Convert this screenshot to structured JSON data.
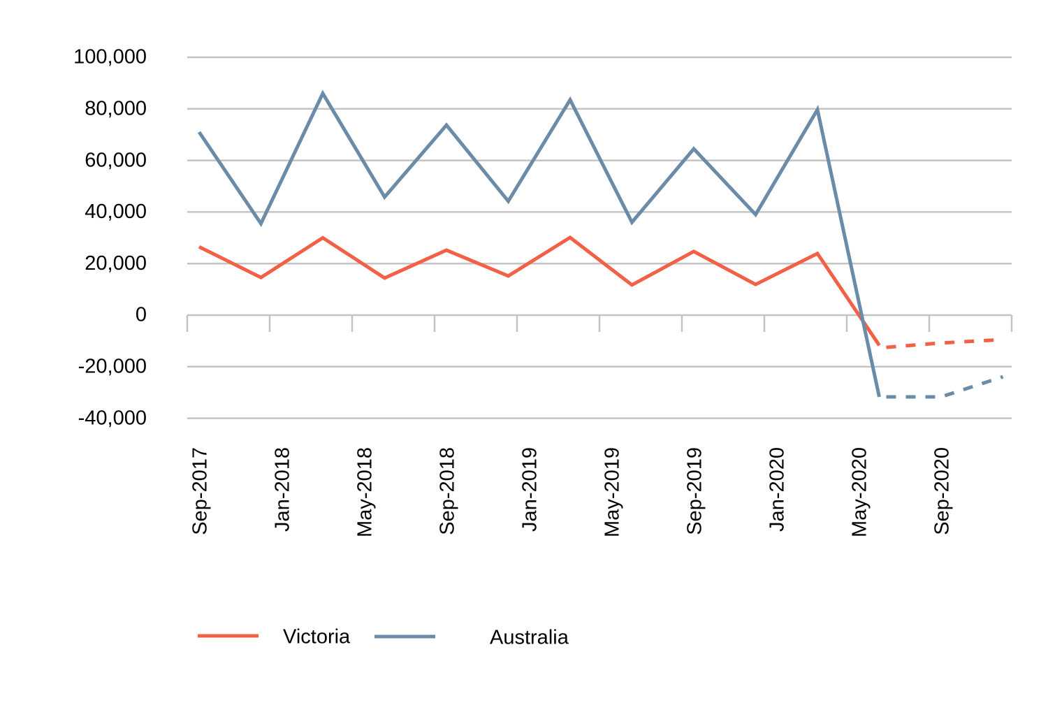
{
  "chart_data": {
    "type": "line",
    "title": "",
    "xlabel": "",
    "ylabel": "",
    "ylim": [
      -40000,
      100000
    ],
    "yticks": [
      100000,
      80000,
      60000,
      40000,
      20000,
      0,
      -20000,
      -40000
    ],
    "ytick_labels": [
      "100,000",
      "80,000",
      "60,000",
      "40,000",
      "20,000",
      "0",
      "-20,000",
      "-40,000"
    ],
    "xtick_labels": [
      "Sep-2017",
      "Jan-2018",
      "May-2018",
      "Sep-2018",
      "Jan-2019",
      "May-2019",
      "Sep-2019",
      "Jan-2020",
      "May-2020",
      "Sep-2020"
    ],
    "grid": true,
    "legend_position": "bottom",
    "x": [
      "Sep-2017",
      "Dec-2017",
      "Mar-2018",
      "Jun-2018",
      "Sep-2018",
      "Dec-2018",
      "Mar-2019",
      "Jun-2019",
      "Sep-2019",
      "Dec-2019",
      "Mar-2020",
      "Jun-2020",
      "Sep-2020",
      "Dec-2020"
    ],
    "series": [
      {
        "name": "Victoria",
        "color": "#F26046",
        "values": [
          26500,
          14600,
          30000,
          14400,
          25200,
          15200,
          30100,
          11700,
          24700,
          11900,
          23900,
          -11700,
          null,
          null
        ],
        "forecast": [
          {
            "x": "Jun-2020",
            "value": -12500
          },
          {
            "x": "Sep-2020",
            "value": -10800
          },
          {
            "x": "Dec-2020",
            "value": -9500
          }
        ]
      },
      {
        "name": "Australia",
        "color": "#6A8CA8",
        "values": [
          71000,
          35500,
          86000,
          45800,
          73700,
          44200,
          83500,
          36000,
          64500,
          39000,
          79700,
          -31700,
          null,
          null
        ],
        "forecast": [
          {
            "x": "Jun-2020",
            "value": -31700
          },
          {
            "x": "Sep-2020",
            "value": -31700
          },
          {
            "x": "Dec-2020",
            "value": -23900
          }
        ]
      }
    ]
  },
  "legend": {
    "items": [
      {
        "label": "Victoria",
        "color": "#F26046"
      },
      {
        "label": "Australia",
        "color": "#6A8CA8"
      }
    ]
  }
}
